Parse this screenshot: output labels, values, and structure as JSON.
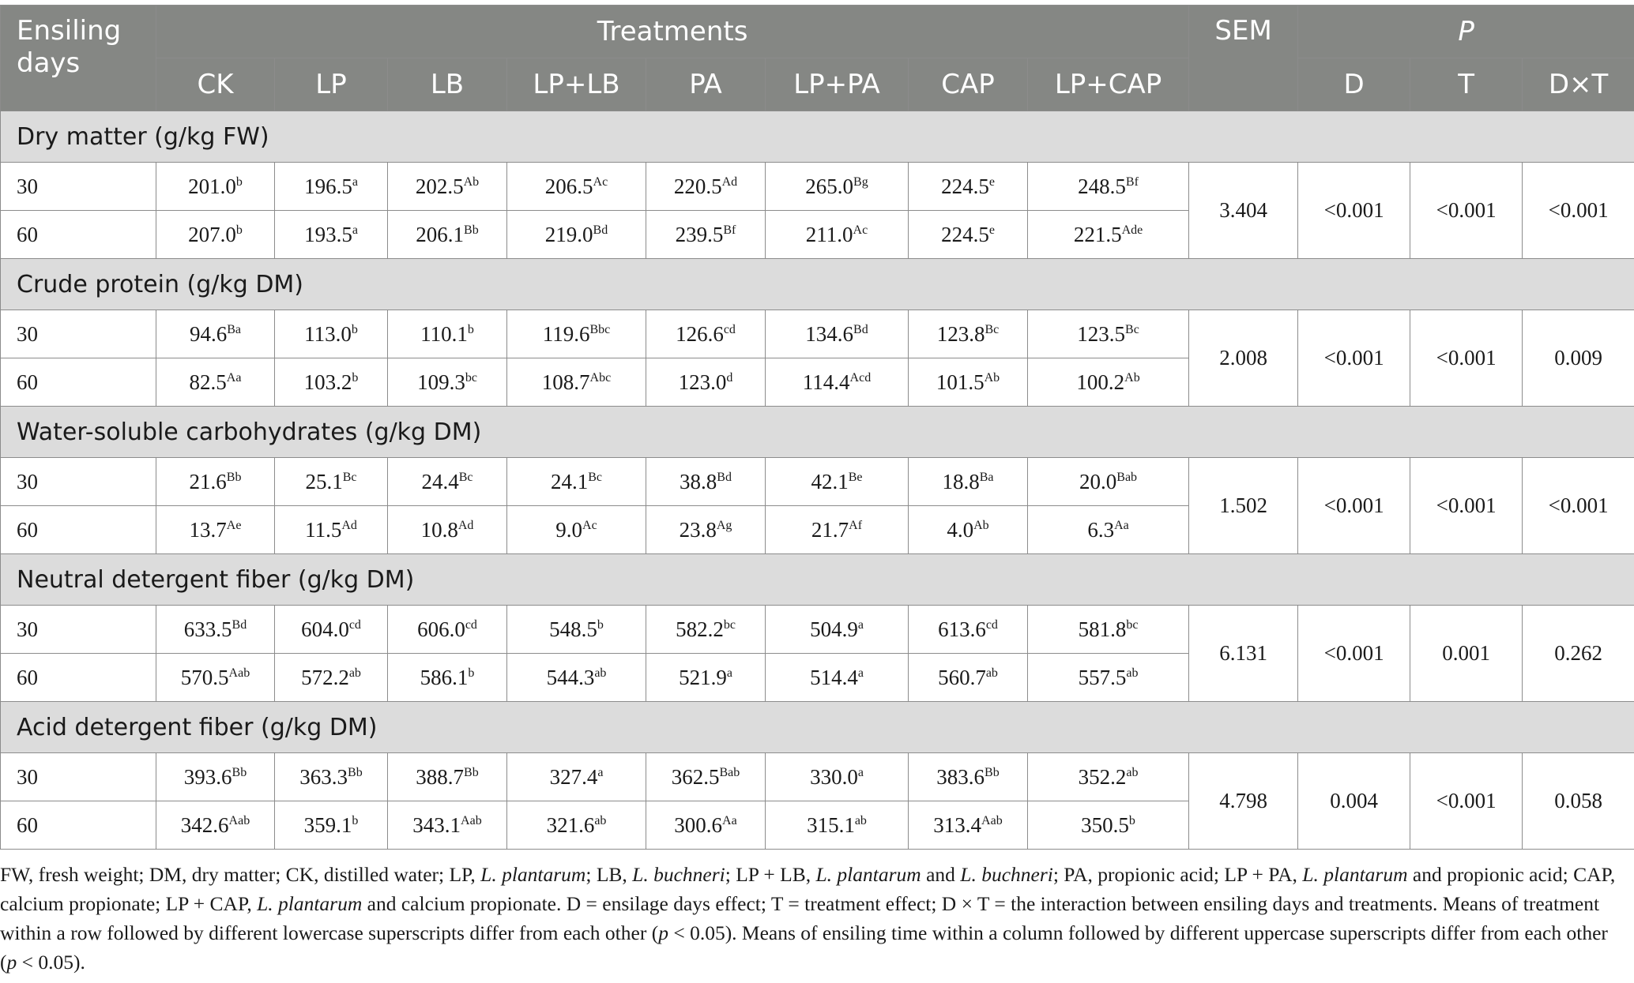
{
  "header": {
    "days": "Ensiling days",
    "treatments": "Treatments",
    "sem": "SEM",
    "p": "P",
    "treatment_cols": [
      "CK",
      "LP",
      "LB",
      "LP+LB",
      "PA",
      "LP+PA",
      "CAP",
      "LP+CAP"
    ],
    "p_cols": [
      "D",
      "T",
      "D×T"
    ]
  },
  "sections": [
    {
      "title": "Dry matter (g/kg FW)",
      "rows": [
        {
          "day": "30",
          "cells": [
            [
              "201.0",
              "b"
            ],
            [
              "196.5",
              "a"
            ],
            [
              "202.5",
              "Ab"
            ],
            [
              "206.5",
              "Ac"
            ],
            [
              "220.5",
              "Ad"
            ],
            [
              "265.0",
              "Bg"
            ],
            [
              "224.5",
              "e"
            ],
            [
              "248.5",
              "Bf"
            ]
          ]
        },
        {
          "day": "60",
          "cells": [
            [
              "207.0",
              "b"
            ],
            [
              "193.5",
              "a"
            ],
            [
              "206.1",
              "Bb"
            ],
            [
              "219.0",
              "Bd"
            ],
            [
              "239.5",
              "Bf"
            ],
            [
              "211.0",
              "Ac"
            ],
            [
              "224.5",
              "e"
            ],
            [
              "221.5",
              "Ade"
            ]
          ]
        }
      ],
      "sem": "3.404",
      "p": [
        "<0.001",
        "<0.001",
        "<0.001"
      ]
    },
    {
      "title": "Crude protein (g/kg DM)",
      "rows": [
        {
          "day": "30",
          "cells": [
            [
              "94.6",
              "Ba"
            ],
            [
              "113.0",
              "b"
            ],
            [
              "110.1",
              "b"
            ],
            [
              "119.6",
              "Bbc"
            ],
            [
              "126.6",
              "cd"
            ],
            [
              "134.6",
              "Bd"
            ],
            [
              "123.8",
              "Bc"
            ],
            [
              "123.5",
              "Bc"
            ]
          ]
        },
        {
          "day": "60",
          "cells": [
            [
              "82.5",
              "Aa"
            ],
            [
              "103.2",
              "b"
            ],
            [
              "109.3",
              "bc"
            ],
            [
              "108.7",
              "Abc"
            ],
            [
              "123.0",
              "d"
            ],
            [
              "114.4",
              "Acd"
            ],
            [
              "101.5",
              "Ab"
            ],
            [
              "100.2",
              "Ab"
            ]
          ]
        }
      ],
      "sem": "2.008",
      "p": [
        "<0.001",
        "<0.001",
        "0.009"
      ]
    },
    {
      "title": "Water-soluble carbohydrates (g/kg DM)",
      "rows": [
        {
          "day": "30",
          "cells": [
            [
              "21.6",
              "Bb"
            ],
            [
              "25.1",
              "Bc"
            ],
            [
              "24.4",
              "Bc"
            ],
            [
              "24.1",
              "Bc"
            ],
            [
              "38.8",
              "Bd"
            ],
            [
              "42.1",
              "Be"
            ],
            [
              "18.8",
              "Ba"
            ],
            [
              "20.0",
              "Bab"
            ]
          ]
        },
        {
          "day": "60",
          "cells": [
            [
              "13.7",
              "Ae"
            ],
            [
              "11.5",
              "Ad"
            ],
            [
              "10.8",
              "Ad"
            ],
            [
              "9.0",
              "Ac"
            ],
            [
              "23.8",
              "Ag"
            ],
            [
              "21.7",
              "Af"
            ],
            [
              "4.0",
              "Ab"
            ],
            [
              "6.3",
              "Aa"
            ]
          ]
        }
      ],
      "sem": "1.502",
      "p": [
        "<0.001",
        "<0.001",
        "<0.001"
      ]
    },
    {
      "title": "Neutral detergent fiber (g/kg DM)",
      "rows": [
        {
          "day": "30",
          "cells": [
            [
              "633.5",
              "Bd"
            ],
            [
              "604.0",
              "cd"
            ],
            [
              "606.0",
              "cd"
            ],
            [
              "548.5",
              "b"
            ],
            [
              "582.2",
              "bc"
            ],
            [
              "504.9",
              "a"
            ],
            [
              "613.6",
              "cd"
            ],
            [
              "581.8",
              "bc"
            ]
          ]
        },
        {
          "day": "60",
          "cells": [
            [
              "570.5",
              "Aab"
            ],
            [
              "572.2",
              "ab"
            ],
            [
              "586.1",
              "b"
            ],
            [
              "544.3",
              "ab"
            ],
            [
              "521.9",
              "a"
            ],
            [
              "514.4",
              "a"
            ],
            [
              "560.7",
              "ab"
            ],
            [
              "557.5",
              "ab"
            ]
          ]
        }
      ],
      "sem": "6.131",
      "p": [
        "<0.001",
        "0.001",
        "0.262"
      ]
    },
    {
      "title": "Acid detergent fiber (g/kg DM)",
      "rows": [
        {
          "day": "30",
          "cells": [
            [
              "393.6",
              "Bb"
            ],
            [
              "363.3",
              "Bb"
            ],
            [
              "388.7",
              "Bb"
            ],
            [
              "327.4",
              "a"
            ],
            [
              "362.5",
              "Bab"
            ],
            [
              "330.0",
              "a"
            ],
            [
              "383.6",
              "Bb"
            ],
            [
              "352.2",
              "ab"
            ]
          ]
        },
        {
          "day": "60",
          "cells": [
            [
              "342.6",
              "Aab"
            ],
            [
              "359.1",
              "b"
            ],
            [
              "343.1",
              "Aab"
            ],
            [
              "321.6",
              "ab"
            ],
            [
              "300.6",
              "Aa"
            ],
            [
              "315.1",
              "ab"
            ],
            [
              "313.4",
              "Aab"
            ],
            [
              "350.5",
              "b"
            ]
          ]
        }
      ],
      "sem": "4.798",
      "p": [
        "0.004",
        "<0.001",
        "0.058"
      ]
    }
  ],
  "footnote": [
    {
      "t": "FW, fresh weight; DM, dry matter; CK, distilled water; LP, "
    },
    {
      "t": "L. plantarum",
      "i": true
    },
    {
      "t": "; LB, "
    },
    {
      "t": "L. buchneri",
      "i": true
    },
    {
      "t": "; LP + LB, "
    },
    {
      "t": "L. plantarum",
      "i": true
    },
    {
      "t": " and "
    },
    {
      "t": "L. buchneri",
      "i": true
    },
    {
      "t": "; PA, propionic acid; LP + PA, "
    },
    {
      "t": "L. plantarum",
      "i": true
    },
    {
      "t": " and propionic acid; CAP, calcium propionate; LP + CAP, "
    },
    {
      "t": "L. plantarum",
      "i": true
    },
    {
      "t": " and calcium propionate. D = ensilage days effect; T = treatment effect; D × T = the interaction between ensiling days and treatments. Means of treatment within a row followed by different lowercase superscripts differ from each other ("
    },
    {
      "t": "p",
      "i": true
    },
    {
      "t": " < 0.05). Means of ensiling time within a column followed by different uppercase superscripts differ from each other ("
    },
    {
      "t": "p",
      "i": true
    },
    {
      "t": " < 0.05)."
    }
  ]
}
